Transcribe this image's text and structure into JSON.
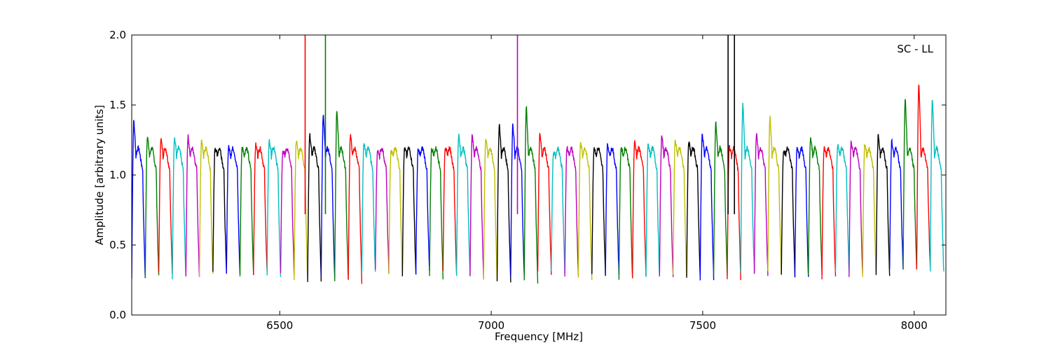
{
  "chart_data": {
    "type": "line",
    "title": "",
    "xlabel": "Frequency [MHz]",
    "ylabel": "Amplitude [arbitrary units]",
    "annotation": "SC - LL",
    "xlim": [
      6150,
      8075
    ],
    "ylim": [
      0.0,
      2.0
    ],
    "x_ticks": [
      6500,
      7000,
      7500,
      8000
    ],
    "x_tick_labels": [
      "6500",
      "7000",
      "7500",
      "8000"
    ],
    "y_ticks": [
      0.0,
      0.5,
      1.0,
      1.5,
      2.0
    ],
    "y_tick_labels": [
      "0.0",
      "0.5",
      "1.0",
      "1.5",
      "2.0"
    ],
    "grid": false,
    "color_cycle": [
      "#0000ff",
      "#007f00",
      "#ff0000",
      "#00bfbf",
      "#bf00bf",
      "#bfbf00",
      "#000000"
    ],
    "channel_start_mhz": 6150,
    "channel_width_mhz": 32,
    "channel_count": 60,
    "channel_peaks": [
      1.39,
      1.28,
      1.26,
      1.27,
      1.28,
      1.24,
      1.2,
      1.2,
      1.2,
      1.22,
      1.25,
      1.17,
      1.25,
      1.29,
      1.43,
      1.47,
      1.29,
      1.24,
      1.17,
      1.17,
      1.19,
      1.18,
      1.19,
      1.2,
      1.29,
      1.29,
      1.26,
      1.37,
      1.37,
      1.49,
      1.3,
      1.15,
      1.2,
      1.24,
      1.2,
      1.22,
      1.2,
      1.24,
      1.22,
      1.28,
      1.26,
      1.24,
      1.3,
      1.37,
      1.2,
      1.51,
      1.3,
      1.42,
      1.17,
      1.2,
      1.27,
      1.2,
      1.22,
      1.24,
      1.22,
      1.28,
      1.24,
      1.55,
      1.67,
      1.55
    ],
    "channel_troughs": [
      0.26,
      0.27,
      0.3,
      0.26,
      0.27,
      0.28,
      0.3,
      0.28,
      0.29,
      0.3,
      0.28,
      0.3,
      0.24,
      0.25,
      0.27,
      0.25,
      0.24,
      0.3,
      0.31,
      0.3,
      0.29,
      0.3,
      0.27,
      0.3,
      0.28,
      0.27,
      0.26,
      0.25,
      0.27,
      0.24,
      0.3,
      0.3,
      0.27,
      0.26,
      0.28,
      0.29,
      0.26,
      0.28,
      0.27,
      0.26,
      0.28,
      0.27,
      0.26,
      0.29,
      0.26,
      0.31,
      0.29,
      0.3,
      0.28,
      0.27,
      0.29,
      0.27,
      0.3,
      0.28,
      0.27,
      0.28,
      0.31,
      0.33,
      0.32,
      0.3
    ],
    "spikes": [
      {
        "x": 6560,
        "y": 2.0,
        "color": "#ff0000"
      },
      {
        "x": 6608,
        "y": 2.0,
        "color": "#007f00"
      },
      {
        "x": 7062,
        "y": 2.0,
        "color": "#bf00bf"
      },
      {
        "x": 7560,
        "y": 2.0,
        "color": "#000000"
      },
      {
        "x": 7575,
        "y": 2.0,
        "color": "#000000"
      }
    ]
  }
}
